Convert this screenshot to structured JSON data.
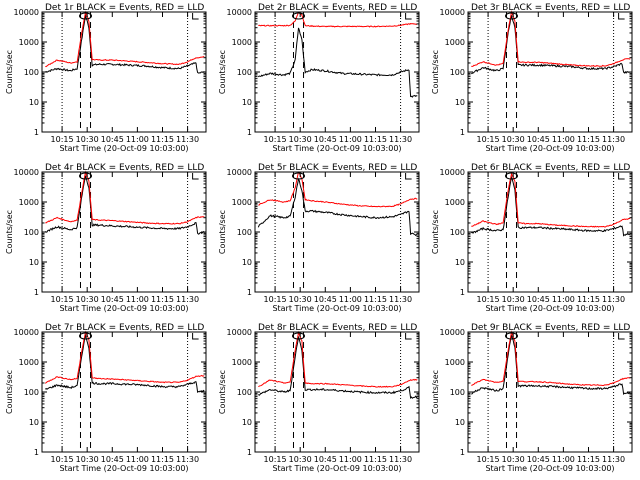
{
  "colors": {
    "events": "#000000",
    "lld": "#ff0000",
    "markers": "#000000"
  },
  "common": {
    "xlabel": "Start Time (20-Oct-09 10:03:00)",
    "ylabel": "Counts/sec",
    "x_tick_labels": [
      "10:15",
      "10:30",
      "10:45",
      "11:00",
      "11:15",
      "11:30"
    ],
    "y_tick_labels": [
      "1",
      "10",
      "100",
      "1000",
      "10000"
    ]
  },
  "chart_data": [
    {
      "type": "line",
      "title": "Det 1r BLACK = Events, RED = LLD",
      "xlabel": "Start Time (20-Oct-09 10:03:00)",
      "ylabel": "Counts/sec",
      "x": [
        "10:05",
        "10:12",
        "10:20",
        "10:24",
        "10:27",
        "10:29",
        "10:31",
        "10:33",
        "10:37",
        "10:45",
        "10:55",
        "11:05",
        "11:15",
        "11:25",
        "11:30",
        "11:35",
        "11:36",
        "11:40"
      ],
      "xlim": [
        "10:03",
        "11:41"
      ],
      "ylim": [
        1,
        10000
      ],
      "yscale": "log",
      "series": [
        {
          "name": "BLACK = Events",
          "values": [
            100,
            130,
            110,
            130,
            1500,
            8000,
            3000,
            170,
            180,
            180,
            170,
            160,
            140,
            130,
            160,
            200,
            90,
            100
          ]
        },
        {
          "name": "RED = LLD",
          "values": [
            150,
            250,
            200,
            220,
            2500,
            10000,
            5000,
            260,
            250,
            250,
            230,
            210,
            190,
            180,
            220,
            300,
            300,
            320
          ]
        }
      ]
    },
    {
      "type": "line",
      "title": "Det 2r BLACK = Events, RED = LLD",
      "xlabel": "Start Time (20-Oct-09 10:03:00)",
      "ylabel": "Counts/sec",
      "x": [
        "10:05",
        "10:12",
        "10:20",
        "10:24",
        "10:27",
        "10:29",
        "10:31",
        "10:33",
        "10:37",
        "10:45",
        "10:55",
        "11:05",
        "11:15",
        "11:25",
        "11:30",
        "11:35",
        "11:36",
        "11:40"
      ],
      "xlim": [
        "10:03",
        "11:41"
      ],
      "ylim": [
        1,
        10000
      ],
      "yscale": "log",
      "series": [
        {
          "name": "BLACK = Events",
          "values": [
            70,
            90,
            80,
            90,
            250,
            3000,
            1200,
            100,
            120,
            110,
            90,
            85,
            80,
            80,
            100,
            120,
            15,
            16
          ]
        },
        {
          "name": "RED = LLD",
          "values": [
            3500,
            3500,
            3500,
            3600,
            5000,
            10000,
            8000,
            3500,
            3400,
            3300,
            3300,
            3300,
            3300,
            3400,
            3600,
            4000,
            4000,
            4000
          ]
        }
      ]
    },
    {
      "type": "line",
      "title": "Det 3r BLACK = Events, RED = LLD",
      "xlabel": "Start Time (20-Oct-09 10:03:00)",
      "ylabel": "Counts/sec",
      "x": [
        "10:05",
        "10:12",
        "10:20",
        "10:24",
        "10:27",
        "10:29",
        "10:31",
        "10:33",
        "10:37",
        "10:45",
        "10:55",
        "11:05",
        "11:15",
        "11:25",
        "11:30",
        "11:35",
        "11:36",
        "11:40"
      ],
      "xlim": [
        "10:03",
        "11:41"
      ],
      "ylim": [
        1,
        10000
      ],
      "yscale": "log",
      "series": [
        {
          "name": "BLACK = Events",
          "values": [
            90,
            140,
            110,
            130,
            2000,
            8000,
            3000,
            170,
            170,
            170,
            160,
            150,
            130,
            130,
            150,
            190,
            95,
            100
          ]
        },
        {
          "name": "RED = LLD",
          "values": [
            150,
            220,
            170,
            190,
            2500,
            10000,
            5000,
            220,
            210,
            210,
            190,
            170,
            160,
            160,
            190,
            250,
            260,
            280
          ]
        }
      ]
    },
    {
      "type": "line",
      "title": "Det 4r BLACK = Events, RED = LLD",
      "xlabel": "Start Time (20-Oct-09 10:03:00)",
      "ylabel": "Counts/sec",
      "x": [
        "10:05",
        "10:12",
        "10:20",
        "10:24",
        "10:27",
        "10:29",
        "10:31",
        "10:33",
        "10:37",
        "10:45",
        "10:55",
        "11:05",
        "11:15",
        "11:25",
        "11:30",
        "11:35",
        "11:36",
        "11:40"
      ],
      "xlim": [
        "10:03",
        "11:41"
      ],
      "ylim": [
        1,
        10000
      ],
      "yscale": "log",
      "series": [
        {
          "name": "BLACK = Events",
          "values": [
            100,
            150,
            120,
            140,
            1800,
            8000,
            3000,
            170,
            170,
            160,
            150,
            140,
            130,
            130,
            150,
            200,
            90,
            100
          ]
        },
        {
          "name": "RED = LLD",
          "values": [
            200,
            300,
            220,
            250,
            2500,
            10000,
            5000,
            260,
            250,
            240,
            220,
            200,
            190,
            190,
            220,
            300,
            310,
            320
          ]
        }
      ]
    },
    {
      "type": "line",
      "title": "Det 5r BLACK = Events, RED = LLD",
      "xlabel": "Start Time (20-Oct-09 10:03:00)",
      "ylabel": "Counts/sec",
      "x": [
        "10:05",
        "10:12",
        "10:20",
        "10:24",
        "10:27",
        "10:29",
        "10:31",
        "10:33",
        "10:37",
        "10:45",
        "10:55",
        "11:05",
        "11:15",
        "11:25",
        "11:30",
        "11:35",
        "11:36",
        "11:40"
      ],
      "xlim": [
        "10:03",
        "11:41"
      ],
      "ylim": [
        1,
        10000
      ],
      "yscale": "log",
      "series": [
        {
          "name": "BLACK = Events",
          "values": [
            150,
            350,
            300,
            330,
            1500,
            6000,
            2500,
            500,
            500,
            450,
            380,
            330,
            300,
            320,
            380,
            500,
            90,
            80
          ]
        },
        {
          "name": "RED = LLD",
          "values": [
            800,
            1200,
            1000,
            1100,
            3000,
            10000,
            6000,
            1200,
            1100,
            1000,
            850,
            750,
            700,
            720,
            850,
            1200,
            1250,
            1300
          ]
        }
      ]
    },
    {
      "type": "line",
      "title": "Det 6r BLACK = Events, RED = LLD",
      "xlabel": "Start Time (20-Oct-09 10:03:00)",
      "ylabel": "Counts/sec",
      "x": [
        "10:05",
        "10:12",
        "10:20",
        "10:24",
        "10:27",
        "10:29",
        "10:31",
        "10:33",
        "10:37",
        "10:45",
        "10:55",
        "11:05",
        "11:15",
        "11:25",
        "11:30",
        "11:35",
        "11:36",
        "11:40"
      ],
      "xlim": [
        "10:03",
        "11:41"
      ],
      "ylim": [
        1,
        10000
      ],
      "yscale": "log",
      "series": [
        {
          "name": "BLACK = Events",
          "values": [
            90,
            130,
            110,
            120,
            1500,
            7000,
            2500,
            140,
            140,
            140,
            130,
            120,
            110,
            110,
            130,
            160,
            80,
            90
          ]
        },
        {
          "name": "RED = LLD",
          "values": [
            150,
            230,
            180,
            200,
            2500,
            9000,
            5000,
            200,
            190,
            190,
            170,
            160,
            150,
            150,
            180,
            250,
            260,
            280
          ]
        }
      ]
    },
    {
      "type": "line",
      "title": "Det 7r BLACK = Events, RED = LLD",
      "xlabel": "Start Time (20-Oct-09 10:03:00)",
      "ylabel": "Counts/sec",
      "x": [
        "10:05",
        "10:12",
        "10:20",
        "10:24",
        "10:27",
        "10:29",
        "10:31",
        "10:33",
        "10:37",
        "10:45",
        "10:55",
        "11:05",
        "11:15",
        "11:25",
        "11:30",
        "11:35",
        "11:36",
        "11:40"
      ],
      "xlim": [
        "10:03",
        "11:41"
      ],
      "ylim": [
        1,
        10000
      ],
      "yscale": "log",
      "series": [
        {
          "name": "BLACK = Events",
          "values": [
            120,
            170,
            140,
            160,
            2000,
            8000,
            3000,
            200,
            190,
            190,
            180,
            170,
            150,
            150,
            180,
            220,
            100,
            110
          ]
        },
        {
          "name": "RED = LLD",
          "values": [
            200,
            320,
            260,
            280,
            2800,
            10000,
            5500,
            300,
            280,
            270,
            250,
            230,
            210,
            210,
            250,
            330,
            340,
            350
          ]
        }
      ]
    },
    {
      "type": "line",
      "title": "Det 8r BLACK = Events, RED = LLD",
      "xlabel": "Start Time (20-Oct-09 10:03:00)",
      "ylabel": "Counts/sec",
      "x": [
        "10:05",
        "10:12",
        "10:20",
        "10:24",
        "10:27",
        "10:29",
        "10:31",
        "10:33",
        "10:37",
        "10:45",
        "10:55",
        "11:05",
        "11:15",
        "11:25",
        "11:30",
        "11:35",
        "11:36",
        "11:40"
      ],
      "xlim": [
        "10:03",
        "11:41"
      ],
      "ylim": [
        1,
        10000
      ],
      "yscale": "log",
      "series": [
        {
          "name": "BLACK = Events",
          "values": [
            80,
            120,
            100,
            110,
            1500,
            7000,
            2500,
            120,
            120,
            120,
            110,
            100,
            95,
            95,
            110,
            140,
            65,
            70
          ]
        },
        {
          "name": "RED = LLD",
          "values": [
            150,
            250,
            200,
            210,
            2500,
            9500,
            5000,
            200,
            190,
            190,
            175,
            160,
            150,
            150,
            175,
            240,
            250,
            260
          ]
        }
      ]
    },
    {
      "type": "line",
      "title": "Det 9r BLACK = Events, RED = LLD",
      "xlabel": "Start Time (20-Oct-09 10:03:00)",
      "ylabel": "Counts/sec",
      "x": [
        "10:05",
        "10:12",
        "10:20",
        "10:24",
        "10:27",
        "10:29",
        "10:31",
        "10:33",
        "10:37",
        "10:45",
        "10:55",
        "11:05",
        "11:15",
        "11:25",
        "11:30",
        "11:35",
        "11:36",
        "11:40"
      ],
      "xlim": [
        "10:03",
        "11:41"
      ],
      "ylim": [
        1,
        10000
      ],
      "yscale": "log",
      "series": [
        {
          "name": "BLACK = Events",
          "values": [
            90,
            140,
            110,
            130,
            1800,
            8000,
            3000,
            160,
            160,
            160,
            150,
            140,
            130,
            130,
            150,
            190,
            85,
            95
          ]
        },
        {
          "name": "RED = LLD",
          "values": [
            170,
            260,
            210,
            230,
            2500,
            10000,
            5000,
            230,
            220,
            220,
            200,
            180,
            170,
            170,
            200,
            270,
            280,
            300
          ]
        }
      ]
    }
  ]
}
